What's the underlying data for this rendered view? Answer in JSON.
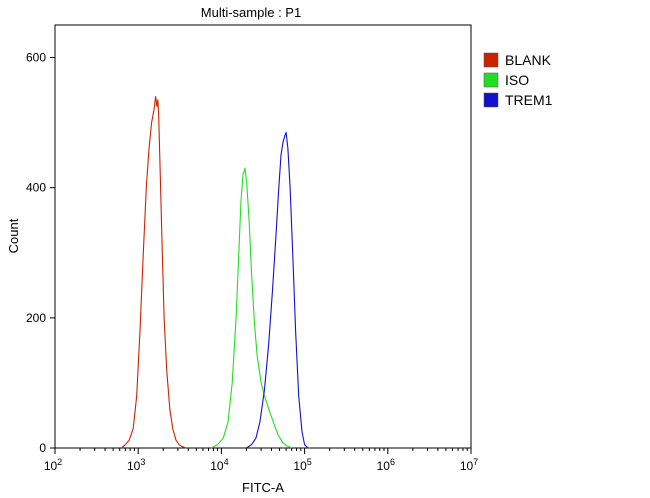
{
  "chart_data": {
    "type": "line",
    "title": "Multi-sample : P1",
    "xlabel": "FITC-A",
    "ylabel": "Count",
    "x_scale": "log",
    "xlim": [
      100,
      10000000
    ],
    "ylim": [
      0,
      650
    ],
    "x_ticks": [
      {
        "value": 100,
        "base": "10",
        "exp": "2"
      },
      {
        "value": 1000,
        "base": "10",
        "exp": "3"
      },
      {
        "value": 10000,
        "base": "10",
        "exp": "4"
      },
      {
        "value": 100000,
        "base": "10",
        "exp": "5"
      },
      {
        "value": 1000000,
        "base": "10",
        "exp": "6"
      },
      {
        "value": 10000000,
        "base": "10",
        "exp": "7"
      }
    ],
    "y_ticks": [
      0,
      200,
      400,
      600
    ],
    "grid": false,
    "legend_position": "top-right",
    "series": [
      {
        "name": "BLANK",
        "color": "#cc2200",
        "x": [
          630,
          700,
          780,
          870,
          960,
          1050,
          1150,
          1250,
          1350,
          1450,
          1550,
          1620,
          1680,
          1720,
          1760,
          1800,
          1860,
          1950,
          2050,
          2200,
          2400,
          2600,
          2850,
          3100,
          3400,
          3800
        ],
        "y": [
          0,
          5,
          12,
          30,
          80,
          180,
          300,
          400,
          460,
          500,
          520,
          540,
          525,
          535,
          515,
          470,
          400,
          300,
          200,
          120,
          60,
          30,
          12,
          5,
          2,
          0
        ]
      },
      {
        "name": "ISO",
        "color": "#22dd22",
        "x": [
          7500,
          9000,
          10500,
          12000,
          13500,
          15000,
          16200,
          17200,
          18200,
          19200,
          20200,
          21500,
          23000,
          25000,
          27000,
          30000,
          33000,
          37000,
          42000,
          48000,
          55000,
          62000,
          70000
        ],
        "y": [
          0,
          5,
          15,
          40,
          100,
          200,
          300,
          380,
          420,
          430,
          405,
          350,
          270,
          190,
          140,
          100,
          80,
          60,
          40,
          20,
          8,
          3,
          0
        ]
      },
      {
        "name": "TREM1",
        "color": "#1111cc",
        "x": [
          20000,
          23000,
          26000,
          29000,
          33000,
          37000,
          41000,
          45000,
          49000,
          52000,
          55000,
          58000,
          60000,
          63000,
          67000,
          72000,
          78000,
          85000,
          93000,
          100000,
          110000
        ],
        "y": [
          0,
          5,
          15,
          40,
          90,
          160,
          240,
          320,
          400,
          450,
          470,
          480,
          485,
          460,
          400,
          300,
          180,
          80,
          25,
          5,
          0
        ]
      }
    ]
  }
}
